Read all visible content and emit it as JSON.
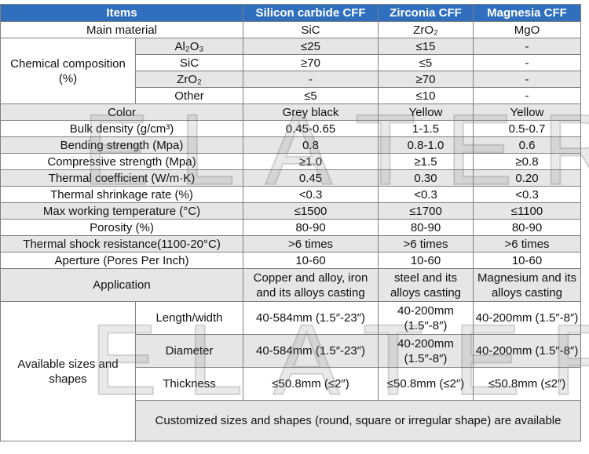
{
  "headers": [
    "Items",
    "Silicon carbide CFF",
    "Zirconia CFF",
    "Magnesia CFF"
  ],
  "main_material": {
    "label": "Main material",
    "values": [
      "SiC",
      "ZrO₂",
      "MgO"
    ]
  },
  "chemical": {
    "label": "Chemical composition (%)",
    "rows": [
      {
        "component": "Al₂O₃",
        "values": [
          "≤25",
          "≤15",
          "-"
        ]
      },
      {
        "component": "SiC",
        "values": [
          "≥70",
          "≤5",
          "-"
        ]
      },
      {
        "component": "ZrO₂",
        "values": [
          "-",
          "≥70",
          "-"
        ]
      },
      {
        "component": "Other",
        "values": [
          "≤5",
          "≤10",
          "-"
        ]
      }
    ]
  },
  "props": [
    {
      "label": "Color",
      "values": [
        "Grey black",
        "Yellow",
        "Yellow"
      ]
    },
    {
      "label": "Bulk density (g/cm³)",
      "values": [
        "0.45-0.65",
        "1-1.5",
        "0.5-0.7"
      ]
    },
    {
      "label": "Bending strength (Mpa)",
      "values": [
        "0.8",
        "0.8-1.0",
        "0.6"
      ]
    },
    {
      "label": "Compressive strength (Mpa)",
      "values": [
        "≥1.0",
        "≥1.5",
        "≥0.8"
      ]
    },
    {
      "label": "Thermal coefficient (W/m·K)",
      "values": [
        "0.45",
        "0.30",
        "0.20"
      ]
    },
    {
      "label": "Thermal shrinkage rate (%)",
      "values": [
        "<0.3",
        "<0.3",
        "<0.3"
      ]
    },
    {
      "label": "Max working temperature (°C)",
      "values": [
        "≤1500",
        "≤1700",
        "≤1100"
      ]
    },
    {
      "label": "Porosity (%)",
      "values": [
        "80-90",
        "80-90",
        "80-90"
      ]
    },
    {
      "label": "Thermal shock resistance(1100-20°C)",
      "values": [
        ">6 times",
        ">6 times",
        ">6 times"
      ]
    },
    {
      "label": "Aperture (Pores Per Inch)",
      "values": [
        "10-60",
        "10-60",
        "10-60"
      ]
    }
  ],
  "application": {
    "label": "Application",
    "values": [
      "Copper and alloy, iron and its alloys casting",
      "steel and its alloys casting",
      "Magnesium and its alloys casting"
    ]
  },
  "sizes": {
    "label": "Available sizes and shapes",
    "rows": [
      {
        "label": "Length/width",
        "values": [
          "40-584mm (1.5″-23″)",
          "40-200mm (1.5″-8″)",
          "40-200mm (1.5″-8″)"
        ]
      },
      {
        "label": "Diameter",
        "values": [
          "40-584mm (1.5″-23″)",
          "40-200mm (1.5″-8″)",
          "40-200mm (1.5″-8″)"
        ]
      },
      {
        "label": "Thickness",
        "values": [
          "≤50.8mm (≤2″)",
          "≤50.8mm (≤2″)",
          "≤50.8mm (≤2″)"
        ]
      }
    ],
    "note": "Customized sizes and shapes (round, square or irregular shape) are available"
  },
  "watermark": "ELATER"
}
